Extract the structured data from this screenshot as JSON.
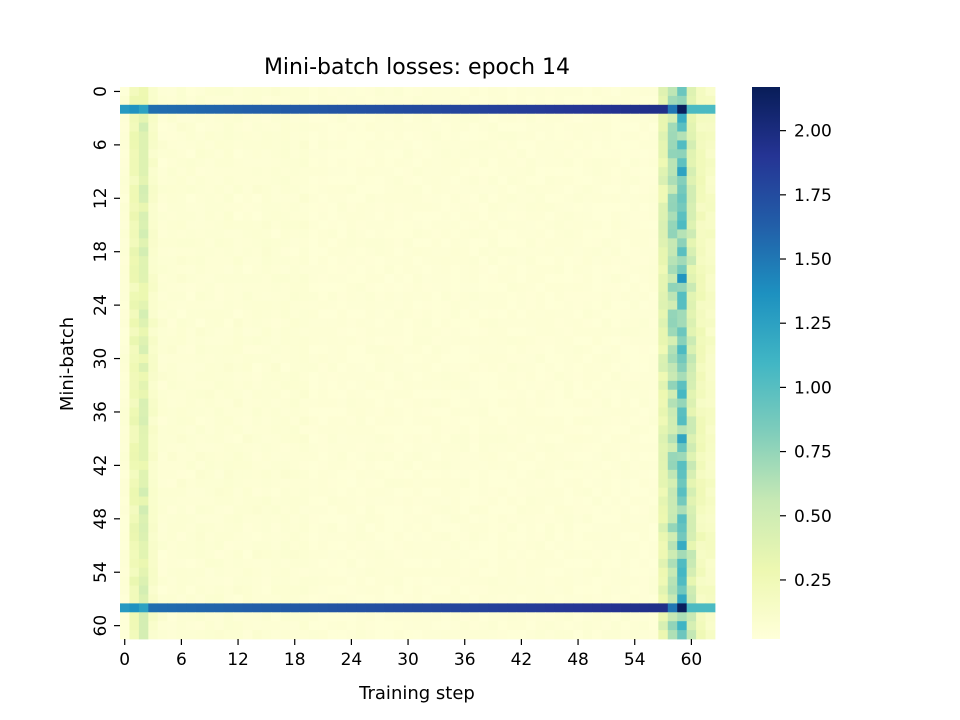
{
  "chart_data": {
    "type": "heatmap",
    "title": "Mini-batch losses: epoch 14",
    "xlabel": "Training step",
    "ylabel": "Mini-batch",
    "n_rows": 62,
    "n_cols": 63,
    "x_ticks": [
      "0",
      "6",
      "12",
      "18",
      "24",
      "30",
      "36",
      "42",
      "48",
      "54",
      "60"
    ],
    "y_ticks": [
      "0",
      "6",
      "12",
      "18",
      "24",
      "30",
      "36",
      "42",
      "48",
      "54",
      "60"
    ],
    "colorbar_ticks": [
      "0.25",
      "0.50",
      "0.75",
      "1.00",
      "1.25",
      "1.50",
      "1.75",
      "2.00"
    ],
    "value_range": [
      0.02,
      2.17
    ],
    "colormap": "YlGnBu",
    "features": {
      "baseline_loss": 0.03,
      "high_loss_rows": [
        2,
        58
      ],
      "high_loss_row_values": [
        1.3,
        1.35,
        1.25,
        1.55,
        1.6,
        1.65,
        1.7,
        1.75,
        1.8,
        1.85,
        1.9,
        1.92,
        1.95,
        1.5,
        2.15,
        1.05
      ],
      "elevated_columns": [
        {
          "col": 1,
          "loss": 0.25
        },
        {
          "col": 2,
          "loss": 0.38
        },
        {
          "col": 3,
          "loss": 0.12
        },
        {
          "col": 57,
          "loss": 0.35
        },
        {
          "col": 58,
          "loss": 0.6
        },
        {
          "col": 59,
          "loss": 0.85
        },
        {
          "col": 60,
          "loss": 0.45
        },
        {
          "col": 61,
          "loss": 0.2
        },
        {
          "col": 62,
          "loss": 0.15
        }
      ]
    }
  }
}
